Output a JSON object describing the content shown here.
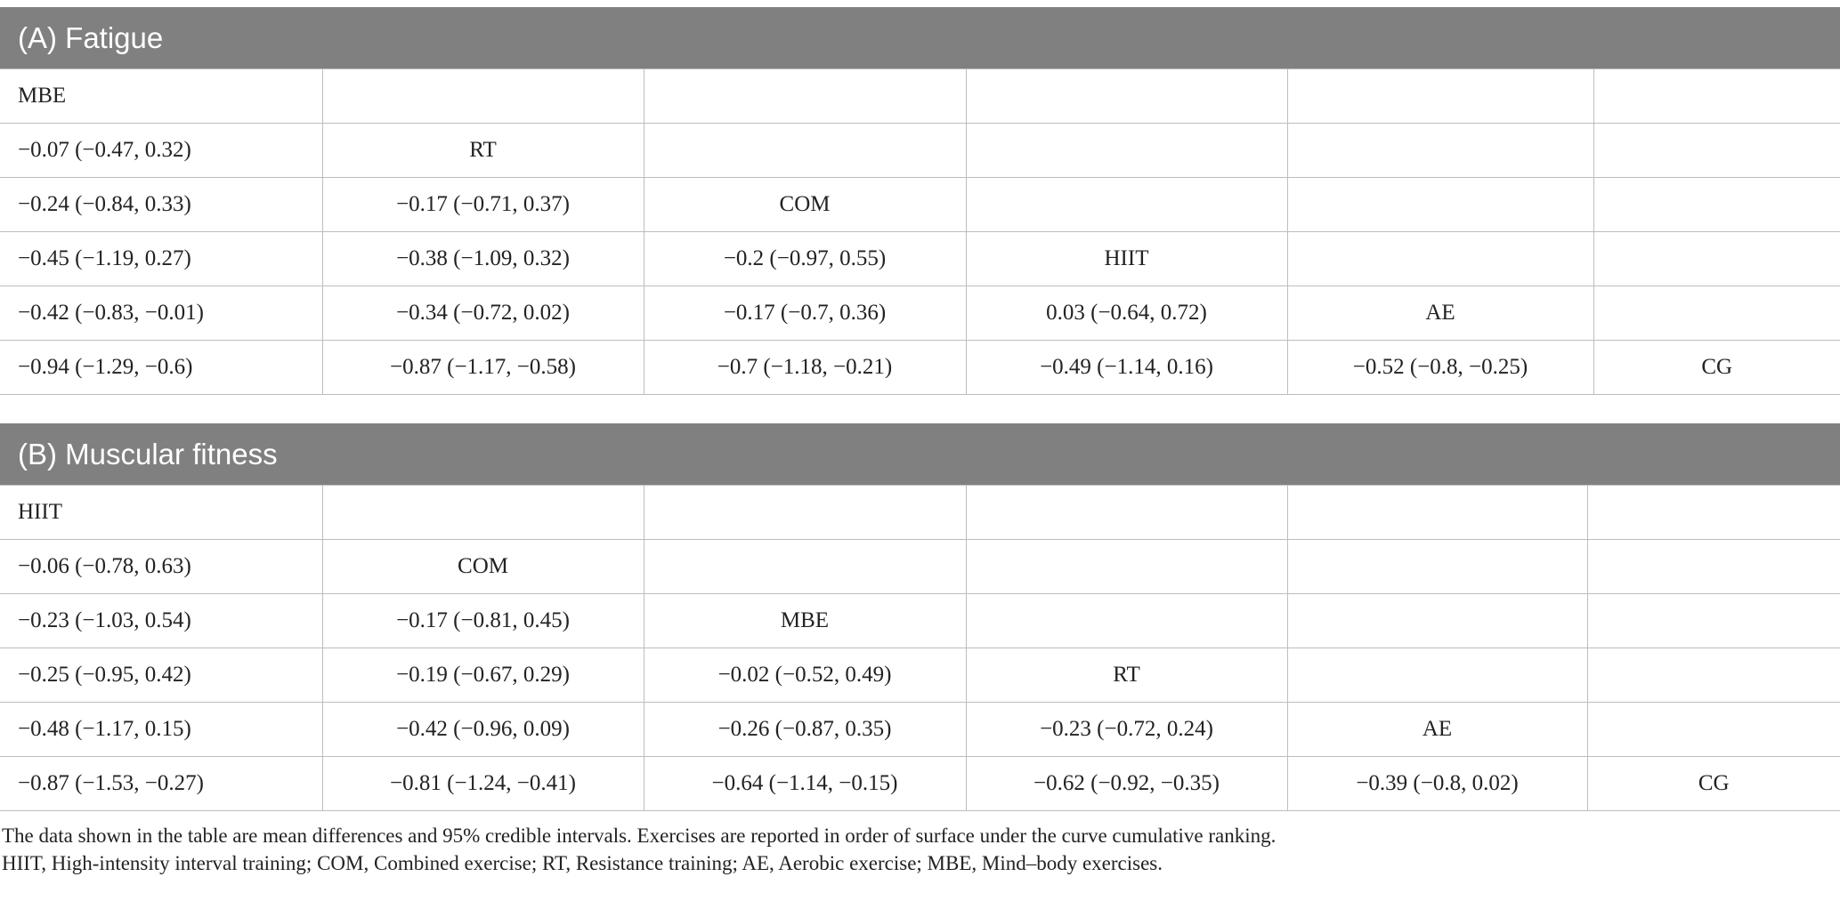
{
  "sections": [
    {
      "title": "(A) Fatigue",
      "rows": [
        [
          "MBE",
          "",
          "",
          "",
          "",
          ""
        ],
        [
          "−0.07 (−0.47, 0.32)",
          "RT",
          "",
          "",
          "",
          ""
        ],
        [
          "−0.24 (−0.84, 0.33)",
          "−0.17 (−0.71, 0.37)",
          "COM",
          "",
          "",
          ""
        ],
        [
          "−0.45 (−1.19, 0.27)",
          "−0.38 (−1.09, 0.32)",
          "−0.2 (−0.97, 0.55)",
          "HIIT",
          "",
          ""
        ],
        [
          "−0.42 (−0.83, −0.01)",
          "−0.34 (−0.72, 0.02)",
          "−0.17 (−0.7, 0.36)",
          "0.03 (−0.64, 0.72)",
          "AE",
          ""
        ],
        [
          "−0.94 (−1.29, −0.6)",
          "−0.87 (−1.17, −0.58)",
          "−0.7 (−1.18, −0.21)",
          "−0.49 (−1.14, 0.16)",
          "−0.52 (−0.8, −0.25)",
          "CG"
        ]
      ]
    },
    {
      "title": "(B) Muscular fitness",
      "rows": [
        [
          "HIIT",
          "",
          "",
          "",
          "",
          ""
        ],
        [
          "−0.06 (−0.78, 0.63)",
          "COM",
          "",
          "",
          "",
          ""
        ],
        [
          "−0.23 (−1.03, 0.54)",
          "−0.17 (−0.81, 0.45)",
          "MBE",
          "",
          "",
          ""
        ],
        [
          "−0.25 (−0.95, 0.42)",
          "−0.19 (−0.67, 0.29)",
          "−0.02 (−0.52, 0.49)",
          "RT",
          "",
          ""
        ],
        [
          "−0.48 (−1.17, 0.15)",
          "−0.42 (−0.96, 0.09)",
          "−0.26 (−0.87, 0.35)",
          "−0.23 (−0.72, 0.24)",
          "AE",
          ""
        ],
        [
          "−0.87 (−1.53, −0.27)",
          "−0.81 (−1.24, −0.41)",
          "−0.64 (−1.14, −0.15)",
          "−0.62 (−0.92, −0.35)",
          "−0.39 (−0.8, 0.02)",
          "CG"
        ]
      ]
    }
  ],
  "footnotes": [
    "The data shown in the table are mean differences and 95% credible intervals. Exercises are reported in order of surface under the curve cumulative ranking.",
    "HIIT, High-intensity interval training; COM, Combined exercise; RT, Resistance training; AE, Aerobic exercise; MBE, Mind–body exercises."
  ]
}
